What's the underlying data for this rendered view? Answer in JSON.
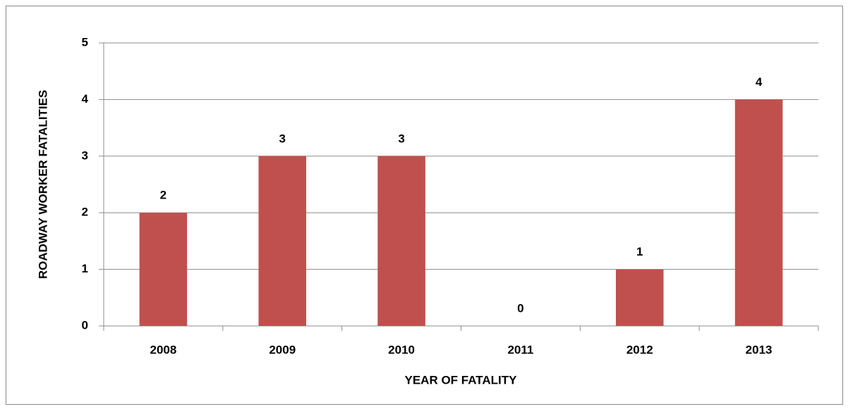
{
  "chart_data": {
    "type": "bar",
    "x_label": "YEAR OF FATALITY",
    "y_label": "ROADWAY WORKER FATALITIES",
    "categories": [
      "2008",
      "2009",
      "2010",
      "2011",
      "2012",
      "2013"
    ],
    "values": [
      2,
      3,
      3,
      0,
      1,
      4
    ],
    "color": "#c0504d",
    "ylim": [
      0,
      5
    ],
    "yticks": [
      0,
      1,
      2,
      3,
      4,
      5
    ],
    "grid": true
  }
}
